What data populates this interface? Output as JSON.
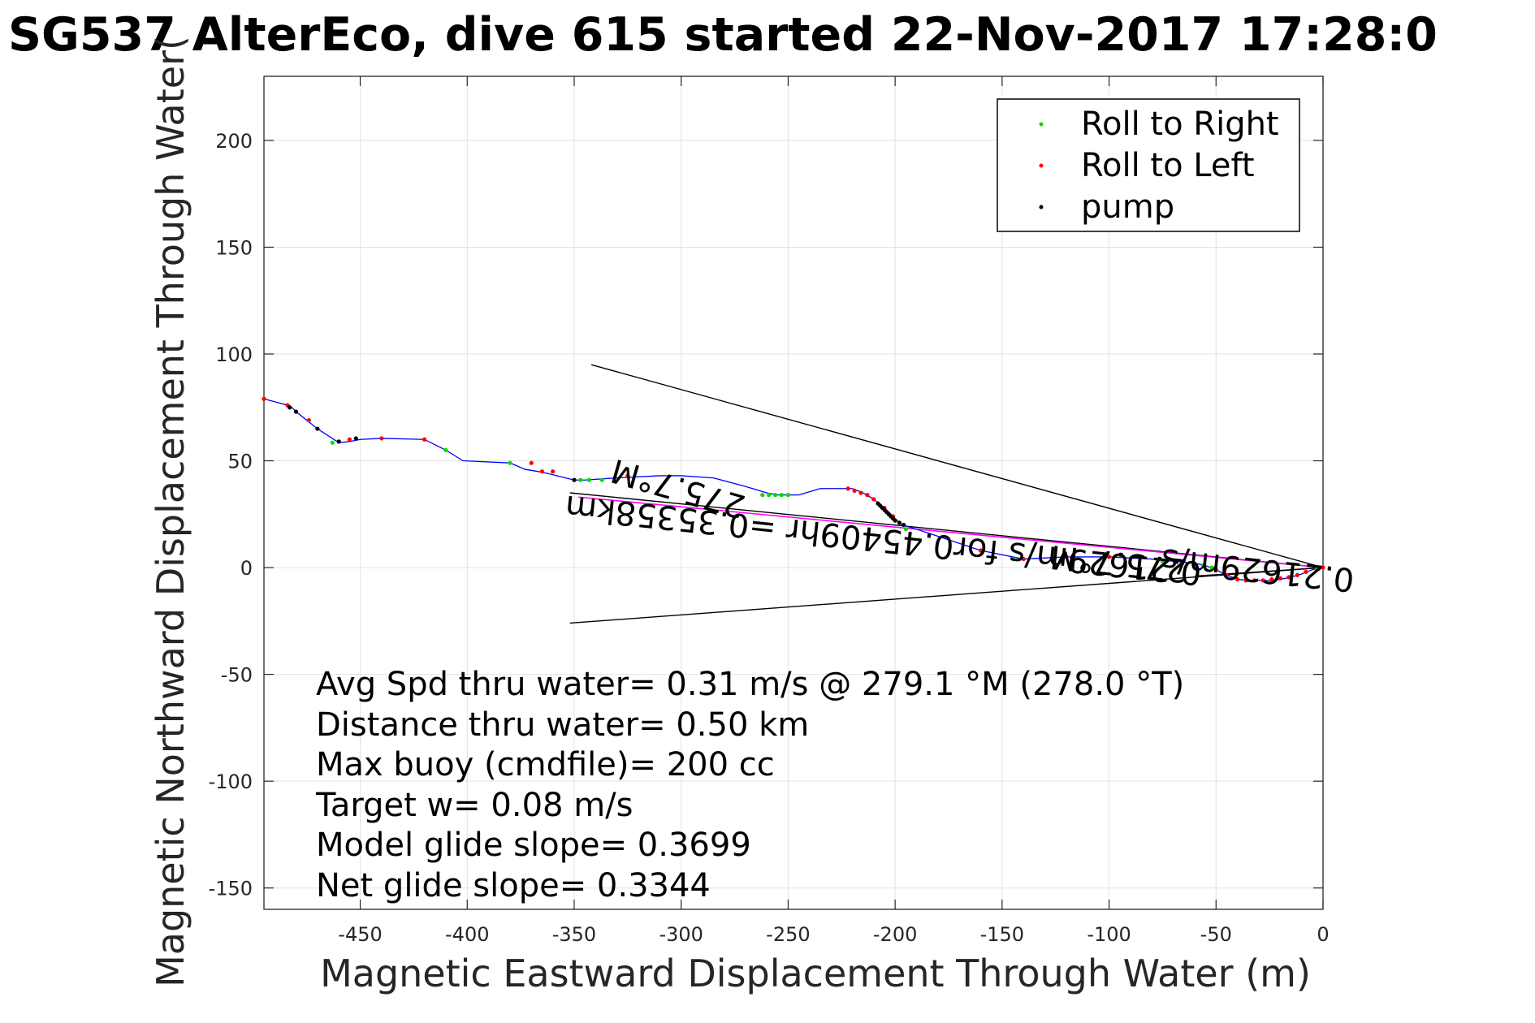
{
  "chart_data": {
    "type": "line",
    "title": "SG537 AlterEco, dive 615 started 22-Nov-2017 17:28:0",
    "xlabel": "Magnetic Eastward Displacement Through Water (m)",
    "ylabel": "Magnetic Northward Displacement Through Water(",
    "xlim": [
      -495,
      0
    ],
    "ylim": [
      -160,
      230
    ],
    "xticks": [
      -450,
      -400,
      -350,
      -300,
      -250,
      -200,
      -150,
      -100,
      -50,
      0
    ],
    "yticks": [
      -150,
      -100,
      -50,
      0,
      50,
      100,
      150,
      200
    ],
    "grid": true,
    "legend_position": "top-right",
    "legend": [
      {
        "label": "Roll to Right",
        "color": "#00dd00"
      },
      {
        "label": "Roll to Left",
        "color": "#ff0000"
      },
      {
        "label": "pump",
        "color": "#000000"
      }
    ],
    "track": {
      "color": "#0000ff",
      "x": [
        0,
        -5,
        -10,
        -15,
        -20,
        -25,
        -30,
        -35,
        -40,
        -45,
        -50,
        -55,
        -60,
        -70,
        -80,
        -100,
        -120,
        -140,
        -160,
        -175,
        -190,
        -197,
        -201,
        -205,
        -210,
        -215,
        -220,
        -235,
        -245,
        -255,
        -260,
        -270,
        -285,
        -300,
        -310,
        -330,
        -345,
        -350,
        -362,
        -367,
        -373,
        -380,
        -402,
        -410,
        -420,
        -440,
        -450,
        -455,
        -460,
        -470,
        -480,
        -482,
        -484,
        -495
      ],
      "y": [
        0,
        -1,
        -3,
        -4.5,
        -5.5,
        -6,
        -6,
        -6,
        -5.5,
        -3.5,
        -1,
        1,
        2,
        3,
        4,
        5,
        5,
        4,
        8,
        13,
        18,
        20,
        24,
        28,
        32,
        35,
        37,
        37,
        34,
        34,
        35,
        38,
        42,
        43,
        43,
        42,
        41,
        41,
        44,
        45,
        46,
        49,
        50,
        55,
        60,
        60.5,
        60,
        59,
        58.5,
        65,
        73,
        75,
        76,
        79
      ]
    },
    "roll_right_points": {
      "x": [
        -3,
        -36,
        -52,
        -56,
        -60,
        -75,
        -145,
        -195,
        -250,
        -253,
        -256,
        -259,
        -262,
        -337,
        -343,
        -347,
        -380,
        -410,
        -463,
        -483
      ],
      "y": [
        0,
        -6,
        0,
        1,
        2,
        3,
        4,
        18,
        34,
        34,
        34,
        34,
        34,
        41,
        41,
        41,
        49,
        55,
        58.5,
        75
      ]
    },
    "roll_left_points": {
      "x": [
        0,
        -2,
        -8,
        -12,
        -16,
        -20,
        -24,
        -28,
        -32,
        -36,
        -40,
        -45,
        -50,
        -100,
        -120,
        -140,
        -160,
        -201,
        -205,
        -210,
        -213,
        -216,
        -219,
        -222,
        -325,
        -370,
        -360,
        -365,
        -420,
        -440,
        -455,
        -495,
        -484,
        -474
      ],
      "y": [
        0,
        -0.5,
        -2,
        -3.5,
        -4.5,
        -5,
        -5.5,
        -6,
        -6,
        -6,
        -5.5,
        -3.5,
        -1,
        5,
        5,
        4,
        8,
        24,
        28,
        32,
        34,
        35,
        36,
        37,
        43,
        49,
        45,
        45,
        60,
        60.5,
        60,
        79,
        76,
        69
      ]
    },
    "pump_points": {
      "x": [
        -200,
        -201,
        -202,
        -203,
        -204,
        -205,
        -206,
        -207,
        -208,
        -198,
        -196,
        -480,
        -483,
        -470,
        -452,
        -460,
        -350
      ],
      "y": [
        22,
        23,
        24,
        25,
        26,
        27,
        28,
        29,
        30,
        21,
        20,
        73,
        75,
        65,
        60.5,
        59,
        41
      ]
    },
    "vector_lines": [
      {
        "name": "heading_upper",
        "color": "#000000",
        "x": [
          0,
          -342
        ],
        "y": [
          0,
          95
        ]
      },
      {
        "name": "heading_lower",
        "color": "#000000",
        "x": [
          0,
          -352
        ],
        "y": [
          0,
          -26
        ]
      },
      {
        "name": "heading_mid",
        "color": "#000000",
        "x": [
          0,
          -352
        ],
        "y": [
          0,
          35
        ]
      },
      {
        "name": "current_vector",
        "color": "#000000",
        "x": [
          0,
          -60
        ],
        "y": [
          0,
          -4
        ]
      },
      {
        "name": "net_displacement",
        "color": "#ff00ff",
        "x": [
          0,
          -348
        ],
        "y": [
          0,
          33
        ]
      }
    ],
    "annotations": [
      {
        "text": "275.7°M",
        "x": -300,
        "y": 42,
        "rotate": 196,
        "color": "#000000"
      },
      {
        "text": "0.21629m/s for0.45409hr =0.35358km",
        "x": -205,
        "y": 18,
        "rotate": 186,
        "color": "#000000"
      },
      {
        "text": "275.7°M",
        "x": -95,
        "y": 7,
        "rotate": 186,
        "color": "#000000"
      },
      {
        "text": "0.21629m/s",
        "x": -30,
        "y": 4,
        "rotate": 186,
        "color": "#000000"
      }
    ],
    "stats": [
      "Avg Spd thru water=  0.31 m/s @ 279.1 °M (278.0 °T)",
      "Distance thru water=  0.50 km",
      "Max buoy (cmdfile)= 200 cc",
      "Target w= 0.08 m/s",
      "Model glide slope= 0.3699",
      "Net glide slope= 0.3344"
    ]
  }
}
